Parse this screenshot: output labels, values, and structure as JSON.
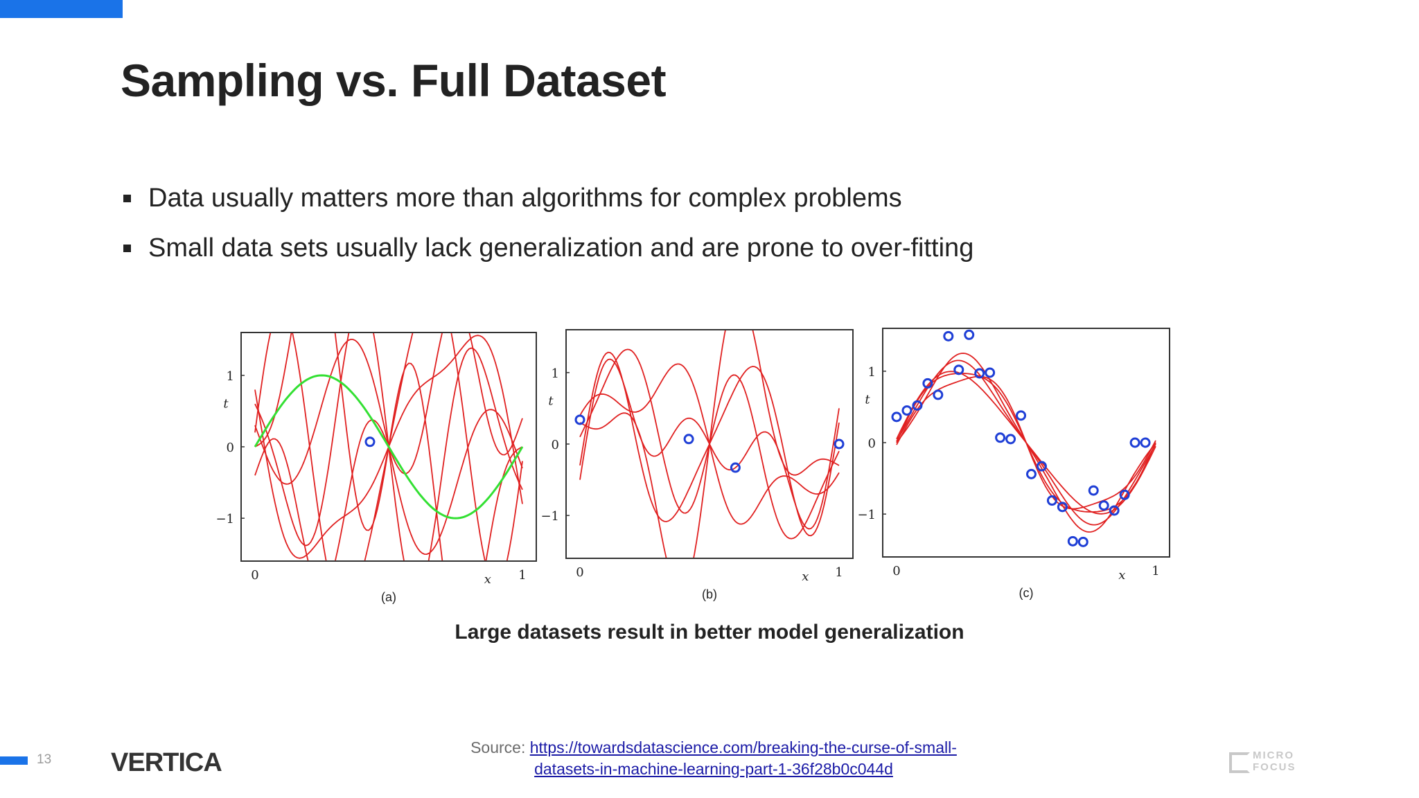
{
  "slide": {
    "title": "Sampling vs. Full Dataset",
    "bullets": [
      "Data usually matters more than algorithms for complex problems",
      "Small data sets usually lack generalization and are prone to over-fitting"
    ],
    "caption": "Large datasets result in better model generalization",
    "source_label": "Source: ",
    "source_url_line1": "https://towardsdatascience.com/breaking-the-curse-of-small-",
    "source_url_line2": "datasets-in-machine-learning-part-1-36f28b0c044d",
    "page_number": "13",
    "logo_left": "VERTICA",
    "logo_right_line1": "MICRO",
    "logo_right_line2": "FOCUS",
    "accent_color": "#1a73e8"
  },
  "chart_data": [
    {
      "type": "line",
      "panel": "(a)",
      "xlabel": "x",
      "ylabel": "t",
      "xlim": [
        0,
        1
      ],
      "ylim": [
        -1.6,
        1.6
      ],
      "x_ticks": [
        "0",
        "1"
      ],
      "y_ticks": [
        "1",
        "0",
        "−1"
      ],
      "true_function": "sin(2*pi*x)",
      "points": [
        {
          "x": 0.43,
          "y": 0.07
        }
      ]
    },
    {
      "type": "line",
      "panel": "(b)",
      "xlabel": "x",
      "ylabel": "t",
      "xlim": [
        0,
        1
      ],
      "ylim": [
        -1.6,
        1.6
      ],
      "x_ticks": [
        "0",
        "1"
      ],
      "y_ticks": [
        "1",
        "0",
        "−1"
      ],
      "points": [
        {
          "x": 0.0,
          "y": 0.34
        },
        {
          "x": 0.42,
          "y": 0.07
        },
        {
          "x": 0.6,
          "y": -0.33
        },
        {
          "x": 1.0,
          "y": 0.0
        }
      ]
    },
    {
      "type": "line",
      "panel": "(c)",
      "xlabel": "x",
      "ylabel": "t",
      "xlim": [
        0,
        1
      ],
      "ylim": [
        -1.6,
        1.6
      ],
      "x_ticks": [
        "0",
        "1"
      ],
      "y_ticks": [
        "1",
        "0",
        "−1"
      ],
      "points": [
        {
          "x": 0.0,
          "y": 0.36
        },
        {
          "x": 0.04,
          "y": 0.45
        },
        {
          "x": 0.08,
          "y": 0.52
        },
        {
          "x": 0.12,
          "y": 0.83
        },
        {
          "x": 0.16,
          "y": 0.67
        },
        {
          "x": 0.2,
          "y": 1.49
        },
        {
          "x": 0.24,
          "y": 1.02
        },
        {
          "x": 0.28,
          "y": 1.51
        },
        {
          "x": 0.32,
          "y": 0.97
        },
        {
          "x": 0.36,
          "y": 0.98
        },
        {
          "x": 0.4,
          "y": 0.07
        },
        {
          "x": 0.44,
          "y": 0.05
        },
        {
          "x": 0.48,
          "y": 0.38
        },
        {
          "x": 0.52,
          "y": -0.44
        },
        {
          "x": 0.56,
          "y": -0.33
        },
        {
          "x": 0.6,
          "y": -0.81
        },
        {
          "x": 0.64,
          "y": -0.9
        },
        {
          "x": 0.68,
          "y": -1.38
        },
        {
          "x": 0.72,
          "y": -1.39
        },
        {
          "x": 0.76,
          "y": -0.67
        },
        {
          "x": 0.8,
          "y": -0.88
        },
        {
          "x": 0.84,
          "y": -0.95
        },
        {
          "x": 0.88,
          "y": -0.73
        },
        {
          "x": 0.92,
          "y": 0.0
        },
        {
          "x": 0.96,
          "y": 0.0
        }
      ]
    }
  ]
}
